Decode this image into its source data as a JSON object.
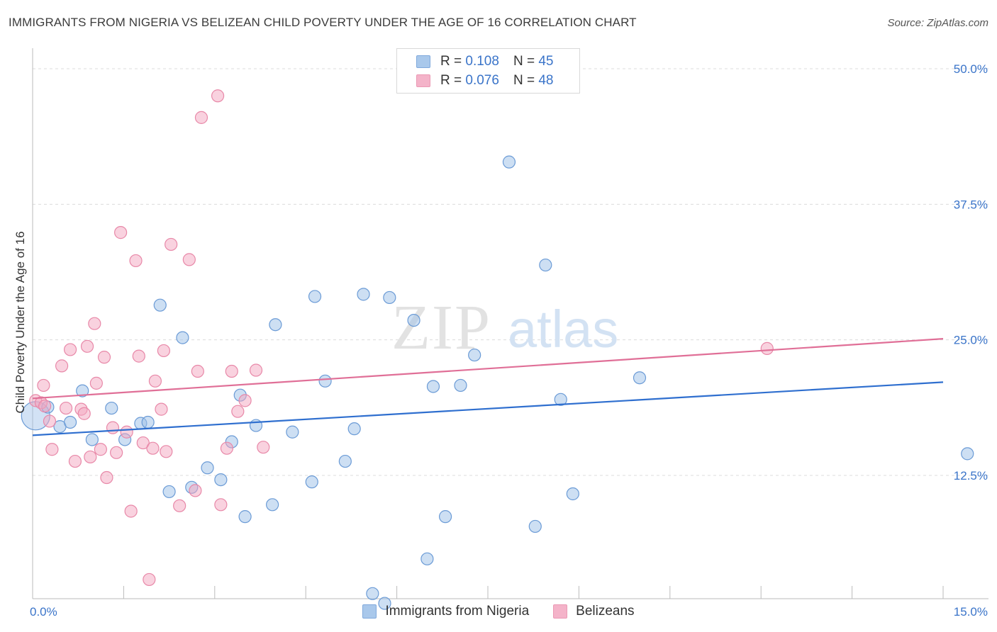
{
  "header": {
    "title": "IMMIGRANTS FROM NIGERIA VS BELIZEAN CHILD POVERTY UNDER THE AGE OF 16 CORRELATION CHART",
    "source": "Source: ZipAtlas.com"
  },
  "legend_top": {
    "rows": [
      {
        "r_label": "R =",
        "r_value": "0.108",
        "n_label": "N =",
        "n_value": "45",
        "color": "#9bbfe8"
      },
      {
        "r_label": "R =",
        "r_value": "0.076",
        "n_label": "N =",
        "n_value": "48",
        "color": "#f3a6c0"
      }
    ]
  },
  "watermark": {
    "zip": "ZIP",
    "atlas": "atlas"
  },
  "chart_data": {
    "type": "scatter",
    "title": "IMMIGRANTS FROM NIGERIA VS BELIZEAN CHILD POVERTY UNDER THE AGE OF 16 CORRELATION CHART",
    "xlabel": "",
    "ylabel": "Child Poverty Under the Age of 16",
    "xlim": [
      0,
      15
    ],
    "ylim": [
      0,
      52
    ],
    "x_tick_labels": [
      "0.0%",
      "15.0%"
    ],
    "y_tick_labels": [
      "12.5%",
      "25.0%",
      "37.5%",
      "50.0%"
    ],
    "y_ticks": [
      12.5,
      25,
      37.5,
      50
    ],
    "grid": true,
    "legend_position": "bottom-center",
    "series": [
      {
        "name": "Immigrants from Nigeria",
        "color": "#9bbfe8",
        "stroke": "#6b9bd6",
        "line_color": "#2f6fcf",
        "trend": [
          [
            0,
            16.2
          ],
          [
            15,
            21.1
          ]
        ],
        "points": [
          [
            0.05,
            18.0
          ],
          [
            0.25,
            18.8
          ],
          [
            0.45,
            17.0
          ],
          [
            0.62,
            17.4
          ],
          [
            0.82,
            20.3
          ],
          [
            0.98,
            15.8
          ],
          [
            1.3,
            18.7
          ],
          [
            1.52,
            15.8
          ],
          [
            1.78,
            17.3
          ],
          [
            1.9,
            17.4
          ],
          [
            2.1,
            28.2
          ],
          [
            2.25,
            11.0
          ],
          [
            2.47,
            25.2
          ],
          [
            2.62,
            11.4
          ],
          [
            2.88,
            13.2
          ],
          [
            3.1,
            12.1
          ],
          [
            3.28,
            15.6
          ],
          [
            3.42,
            19.9
          ],
          [
            3.5,
            8.7
          ],
          [
            3.68,
            17.1
          ],
          [
            3.95,
            9.8
          ],
          [
            4.0,
            26.4
          ],
          [
            4.28,
            16.5
          ],
          [
            4.6,
            11.9
          ],
          [
            4.65,
            29.0
          ],
          [
            4.82,
            21.2
          ],
          [
            5.15,
            13.8
          ],
          [
            5.3,
            16.8
          ],
          [
            5.45,
            29.2
          ],
          [
            5.6,
            1.6
          ],
          [
            5.8,
            0.7
          ],
          [
            5.88,
            28.9
          ],
          [
            6.28,
            26.8
          ],
          [
            6.5,
            4.8
          ],
          [
            6.6,
            20.7
          ],
          [
            6.8,
            8.7
          ],
          [
            7.05,
            20.8
          ],
          [
            7.28,
            23.6
          ],
          [
            7.85,
            41.4
          ],
          [
            8.28,
            7.8
          ],
          [
            8.45,
            31.9
          ],
          [
            8.7,
            19.5
          ],
          [
            8.9,
            10.8
          ],
          [
            10.0,
            21.5
          ],
          [
            15.4,
            14.5
          ]
        ]
      },
      {
        "name": "Belizeans",
        "color": "#f3a6c0",
        "stroke": "#e888a8",
        "line_color": "#e06f97",
        "trend": [
          [
            0,
            19.6
          ],
          [
            15,
            25.1
          ]
        ],
        "points": [
          [
            0.05,
            19.4
          ],
          [
            0.14,
            19.2
          ],
          [
            0.18,
            20.8
          ],
          [
            0.2,
            18.9
          ],
          [
            0.28,
            17.5
          ],
          [
            0.32,
            14.9
          ],
          [
            0.48,
            22.6
          ],
          [
            0.55,
            18.7
          ],
          [
            0.62,
            24.1
          ],
          [
            0.7,
            13.8
          ],
          [
            0.8,
            18.6
          ],
          [
            0.85,
            18.2
          ],
          [
            0.9,
            24.4
          ],
          [
            0.95,
            14.2
          ],
          [
            1.02,
            26.5
          ],
          [
            1.05,
            21.0
          ],
          [
            1.12,
            14.9
          ],
          [
            1.18,
            23.4
          ],
          [
            1.22,
            12.3
          ],
          [
            1.32,
            16.9
          ],
          [
            1.38,
            14.6
          ],
          [
            1.45,
            34.9
          ],
          [
            1.55,
            16.5
          ],
          [
            1.62,
            9.2
          ],
          [
            1.7,
            32.3
          ],
          [
            1.75,
            23.5
          ],
          [
            1.82,
            15.5
          ],
          [
            1.92,
            2.9
          ],
          [
            1.98,
            15.0
          ],
          [
            2.02,
            21.2
          ],
          [
            2.12,
            18.6
          ],
          [
            2.16,
            24.0
          ],
          [
            2.2,
            14.7
          ],
          [
            2.28,
            33.8
          ],
          [
            2.42,
            9.7
          ],
          [
            2.58,
            32.4
          ],
          [
            2.68,
            11.1
          ],
          [
            2.72,
            22.1
          ],
          [
            2.78,
            45.5
          ],
          [
            3.05,
            47.5
          ],
          [
            3.1,
            9.8
          ],
          [
            3.2,
            15.0
          ],
          [
            3.28,
            22.1
          ],
          [
            3.38,
            18.4
          ],
          [
            3.5,
            19.4
          ],
          [
            3.68,
            22.2
          ],
          [
            3.8,
            15.1
          ],
          [
            12.1,
            24.2
          ]
        ]
      }
    ]
  }
}
